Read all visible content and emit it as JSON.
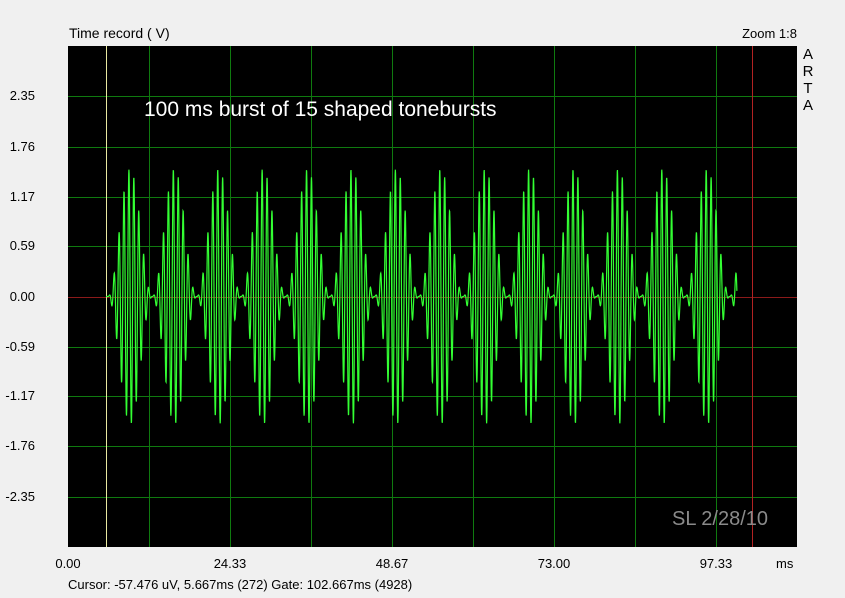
{
  "header": {
    "title": "Time record ( V)",
    "zoom": "Zoom 1:8",
    "brand": [
      "A",
      "R",
      "T",
      "A"
    ]
  },
  "annotation": "100 ms burst of 15 shaped tonebursts",
  "watermark": "SL 2/28/10",
  "status": "Cursor: -57.476 uV, 5.667ms (272)  Gate: 102.667ms (4928)",
  "colors": {
    "background": "#000000",
    "grid": "#0f7a0f",
    "trace": "#33ff33",
    "zero_line": "#8b1a1a",
    "cursor_line": "#e8e8a0",
    "gate_line": "#b22222"
  },
  "chart_data": {
    "type": "line",
    "title": "Time record ( V)",
    "xlabel": "ms",
    "ylabel": "",
    "xlim": [
      0,
      109.5
    ],
    "ylim": [
      -2.94,
      2.94
    ],
    "x_ticks": [
      "0.00",
      "24.33",
      "48.67",
      "73.00",
      "97.33"
    ],
    "x_tick_values": [
      0,
      24.33,
      48.67,
      73.0,
      97.33
    ],
    "y_ticks": [
      "2.35",
      "1.76",
      "1.17",
      "0.59",
      "0.00",
      "-0.59",
      "-1.17",
      "-1.76",
      "-2.35"
    ],
    "y_tick_values": [
      2.35,
      1.76,
      1.17,
      0.59,
      0.0,
      -0.59,
      -1.17,
      -1.76,
      -2.35
    ],
    "grid": true,
    "cursor_ms": 5.667,
    "gate_ms": 102.667,
    "series": [
      {
        "bursts": 15,
        "burst_start_ms": 6.0,
        "burst_period_ms": 6.67,
        "peak_amplitude": 1.5,
        "cycles_per_burst": 9,
        "end_ms": 100.5
      }
    ]
  }
}
